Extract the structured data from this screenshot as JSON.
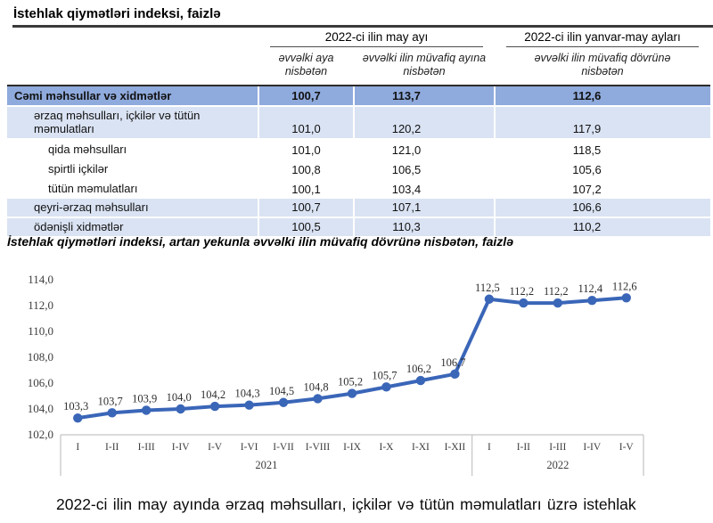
{
  "page": {
    "table_title": "İstehlak qiymətləri indeksi, faizlə",
    "chart_title": "İstehlak qiymətləri indeksi, artan yekunla əvvəlki ilin müvafiq dövrünə nisbətən, faizlə",
    "paragraph": "2022-ci ilin may ayında ərzaq məhsulları, içkilər və tütün məmulatları üzrə istehlak"
  },
  "table": {
    "group_headers": [
      "2022-ci ilin may ayı",
      "2022-ci ilin yanvar-may ayları"
    ],
    "col_headers": [
      "əvvəlki aya nisbətən",
      "əvvəlki ilin müvafiq ayına nisbətən",
      "əvvəlki ilin müvafiq dövrünə nisbətən"
    ],
    "rows": [
      {
        "label": "Cəmi məhsullar və xidmətlər",
        "values": [
          "100,7",
          "113,7",
          "112,6"
        ],
        "style": "total",
        "indent": 0
      },
      {
        "label": "ərzaq məhsulları, içkilər və tütün məmulatları",
        "values": [
          "101,0",
          "120,2",
          "117,9"
        ],
        "style": "band",
        "indent": 1
      },
      {
        "label": "qida məhsulları",
        "values": [
          "101,0",
          "121,0",
          "118,5"
        ],
        "style": "plain",
        "indent": 2
      },
      {
        "label": "spirtli içkilər",
        "values": [
          "100,8",
          "106,5",
          "105,6"
        ],
        "style": "plain",
        "indent": 2
      },
      {
        "label": "tütün məmulatları",
        "values": [
          "100,1",
          "103,4",
          "107,2"
        ],
        "style": "plain",
        "indent": 2
      },
      {
        "label": "qeyri-ərzaq məhsulları",
        "values": [
          "100,7",
          "107,1",
          "106,6"
        ],
        "style": "band",
        "indent": 1
      },
      {
        "label": "ödənişli xidmətlər",
        "values": [
          "100,5",
          "110,3",
          "110,2"
        ],
        "style": "band",
        "indent": 1
      }
    ]
  },
  "chart_data": {
    "type": "line",
    "title": "İstehlak qiymətləri indeksi, artan yekunla əvvəlki ilin müvafiq dövrünə nisbətən, faizlə",
    "categories": [
      "I",
      "I-II",
      "I-III",
      "I-IV",
      "I-V",
      "I-VI",
      "I-VII",
      "I-VIII",
      "I-IX",
      "I-X",
      "I-XI",
      "I-XII",
      "I",
      "I-II",
      "I-III",
      "I-IV",
      "I-V"
    ],
    "groups": [
      {
        "label": "2021",
        "span": 12
      },
      {
        "label": "2022",
        "span": 5
      }
    ],
    "values": [
      103.3,
      103.7,
      103.9,
      104.0,
      104.2,
      104.3,
      104.5,
      104.8,
      105.2,
      105.7,
      106.2,
      106.7,
      112.5,
      112.2,
      112.2,
      112.4,
      112.6
    ],
    "point_labels": [
      "103,3",
      "103,7",
      "103,9",
      "104,0",
      "104,2",
      "104,3",
      "104,5",
      "104,8",
      "105,2",
      "105,7",
      "106,2",
      "106,7",
      "112,5",
      "112,2",
      "112,2",
      "112,4",
      "112,6"
    ],
    "ylim": [
      102.0,
      114.0
    ],
    "ytick_step": 2.0,
    "ytick_labels": [
      "102,0",
      "104,0",
      "106,0",
      "108,0",
      "110,0",
      "112,0",
      "114,0"
    ],
    "grid": false,
    "legend": "none",
    "marker": "circle"
  },
  "colors": {
    "total_row_bg": "#8FAADC",
    "band_row_bg": "#DAE3F3",
    "line_color": "#3A66B8",
    "axis_line": "#c3c3c3",
    "rule_dark": "#3a3a3a"
  }
}
